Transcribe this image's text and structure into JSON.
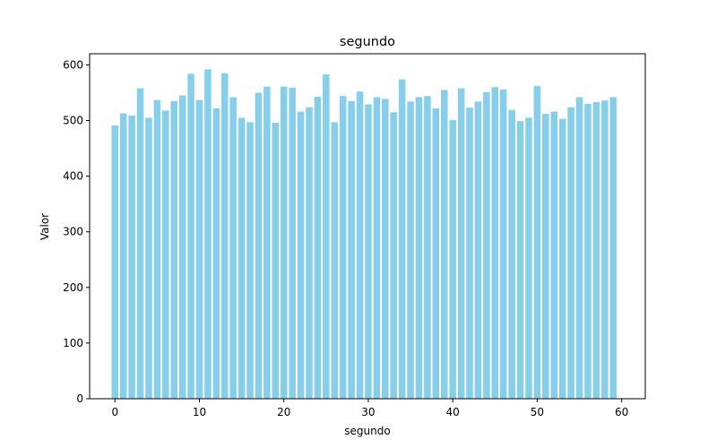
{
  "chart_data": {
    "type": "bar",
    "title": "segundo",
    "xlabel": "segundo",
    "ylabel": "Valor",
    "color": "#87CEEB",
    "xlim": [
      -3,
      62.8
    ],
    "ylim": [
      0,
      620
    ],
    "xticks": [
      0,
      10,
      20,
      30,
      40,
      50,
      60
    ],
    "yticks": [
      0,
      100,
      200,
      300,
      400,
      500,
      600
    ],
    "grid": false,
    "legend": "none",
    "x": [
      0,
      1,
      2,
      3,
      4,
      5,
      6,
      7,
      8,
      9,
      10,
      11,
      12,
      13,
      14,
      15,
      16,
      17,
      18,
      19,
      20,
      21,
      22,
      23,
      24,
      25,
      26,
      27,
      28,
      29,
      30,
      31,
      32,
      33,
      34,
      35,
      36,
      37,
      38,
      39,
      40,
      41,
      42,
      43,
      44,
      45,
      46,
      47,
      48,
      49,
      50,
      51,
      52,
      53,
      54,
      55,
      56,
      57,
      58,
      59
    ],
    "values": [
      491,
      513,
      509,
      558,
      505,
      537,
      518,
      535,
      545,
      584,
      537,
      592,
      522,
      585,
      542,
      505,
      497,
      550,
      561,
      496,
      561,
      559,
      516,
      524,
      543,
      583,
      497,
      544,
      535,
      552,
      529,
      542,
      539,
      515,
      574,
      534,
      542,
      544,
      522,
      555,
      501,
      558,
      523,
      534,
      551,
      560,
      556,
      519,
      499,
      505,
      562,
      512,
      516,
      503,
      524,
      542,
      530,
      533,
      536,
      542
    ]
  }
}
